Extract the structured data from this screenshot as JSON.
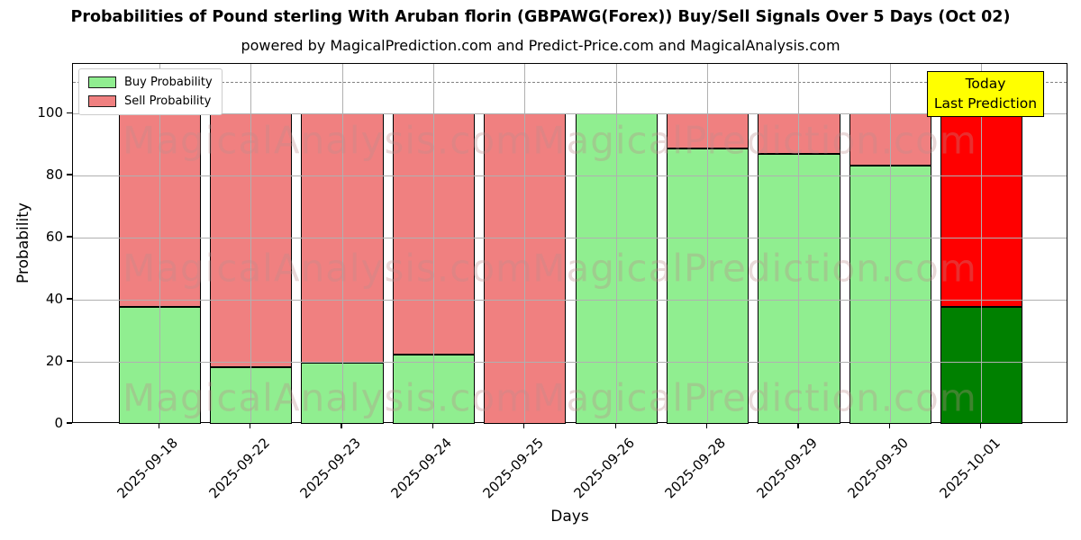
{
  "chart_data": {
    "type": "bar",
    "stacked": true,
    "title": "Probabilities of Pound sterling With Aruban florin (GBPAWG(Forex)) Buy/Sell Signals Over 5 Days (Oct 02)",
    "subtitle": "powered by MagicalPrediction.com and Predict-Price.com and MagicalAnalysis.com",
    "xlabel": "Days",
    "ylabel": "Probability",
    "categories": [
      "2025-09-18",
      "2025-09-22",
      "2025-09-23",
      "2025-09-24",
      "2025-09-25",
      "2025-09-26",
      "2025-09-28",
      "2025-09-29",
      "2025-09-30",
      "2025-10-01"
    ],
    "series": [
      {
        "name": "Buy Probability",
        "color": "#90ee90",
        "values": [
          37.6,
          18.3,
          19.8,
          22.3,
          0,
          100,
          88.7,
          87.1,
          83.2,
          37.6
        ]
      },
      {
        "name": "Sell Probability",
        "color": "#f08080",
        "values": [
          62.4,
          81.7,
          80.2,
          77.7,
          100,
          0,
          11.3,
          12.9,
          16.8,
          62.4
        ]
      }
    ],
    "today_bar": {
      "category": "2025-10-01",
      "buy_color": "#008000",
      "sell_color": "#ff0000"
    },
    "annotation": {
      "lines": [
        "Today",
        "Last Prediction"
      ],
      "bg_color": "#ffff00"
    },
    "watermarks": [
      "MagicalAnalysis.com",
      "MagicalPrediction.com"
    ],
    "yticks": [
      0,
      20,
      40,
      60,
      80,
      100
    ],
    "ylim": [
      0,
      116
    ],
    "dashed_line_y": 110,
    "grid": true,
    "legend_position": "upper left",
    "bar_edge_color": "#000000",
    "grid_color": "#b0b0b0",
    "dashed_line_color": "#828282"
  }
}
